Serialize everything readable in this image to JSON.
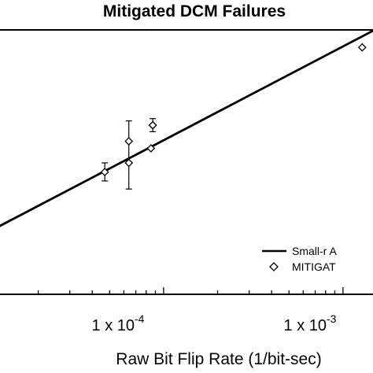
{
  "chart_data": {
    "type": "scatter",
    "title": "Mitigated DCM Failures",
    "xlabel": "Raw Bit Flip Rate (1/bit-sec)",
    "ylabel": "",
    "x_scale": "log",
    "y_scale": "log",
    "xlim": [
      1.2e-05,
      0.0015
    ],
    "ylim": [
      0.00115,
      1.04
    ],
    "x_ticks": [
      {
        "base": "1 x 10",
        "exp": "-4",
        "value": 0.0001
      },
      {
        "base": "1 x 10",
        "exp": "-3",
        "value": 0.001
      }
    ],
    "series": [
      {
        "name": "Small-r A",
        "kind": "line",
        "x": [
          1.2e-05,
          0.0015
        ],
        "y": [
          0.00656,
          1.04
        ]
      },
      {
        "name": "MITIGAT",
        "kind": "scatter",
        "marker": "diamond",
        "points": [
          {
            "x": 4.7e-05,
            "y": 0.0268,
            "err_low": 0.0213,
            "err_high": 0.0339
          },
          {
            "x": 6.4e-05,
            "y": 0.0339,
            "err_low": 0.0173,
            "err_high": 0.1
          },
          {
            "x": 6.4e-05,
            "y": 0.0592
          },
          {
            "x": 8.5e-05,
            "y": 0.0493
          },
          {
            "x": 8.7e-05,
            "y": 0.0894,
            "err_low": 0.0756,
            "err_high": 0.106
          },
          {
            "x": 8.7e-05,
            "y": 0.0894
          },
          {
            "x": 0.00128,
            "y": 0.663
          }
        ]
      }
    ],
    "legend": {
      "position": "bottom-right",
      "entries": [
        {
          "label": "Small-r A",
          "symbol": "line"
        },
        {
          "label": "MITIGAT",
          "symbol": "diamond"
        }
      ]
    },
    "grid": false
  }
}
